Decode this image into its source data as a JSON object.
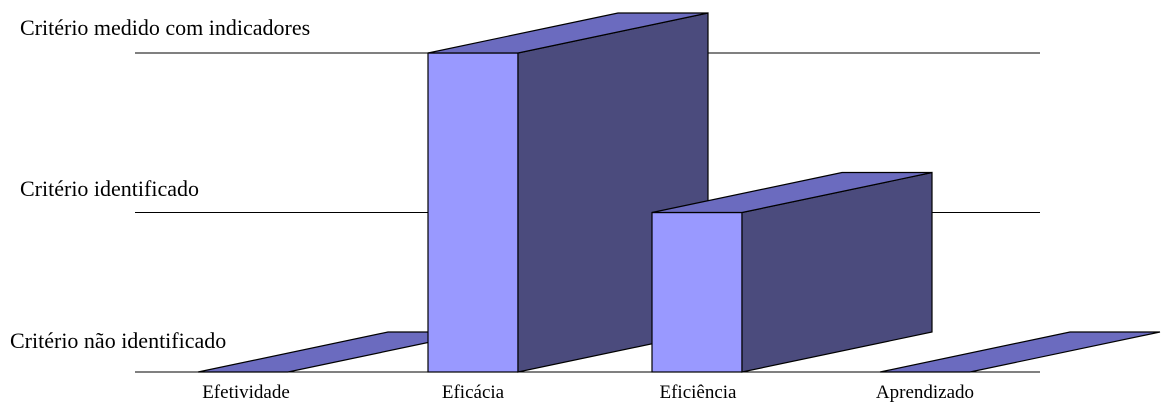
{
  "chart_data": {
    "type": "bar",
    "style": "3d",
    "title": "",
    "xlabel": "",
    "ylabel": "",
    "categories": [
      "Efetividade",
      "Eficácia",
      "Eficiência",
      "Aprendizado"
    ],
    "values": [
      0,
      2,
      1,
      0
    ],
    "ylim": [
      0,
      2
    ],
    "ytick_values": [
      0,
      1,
      2
    ],
    "ytick_labels": [
      "Critério não identificado",
      "Critério identificado",
      "Critério medido com indicadores"
    ],
    "grid": true,
    "legend": "none",
    "colors": {
      "front": "#9999ff",
      "side": "#4b4b7d",
      "top": "#6b6bbf",
      "outline": "#000000",
      "grid": "#000000"
    }
  }
}
